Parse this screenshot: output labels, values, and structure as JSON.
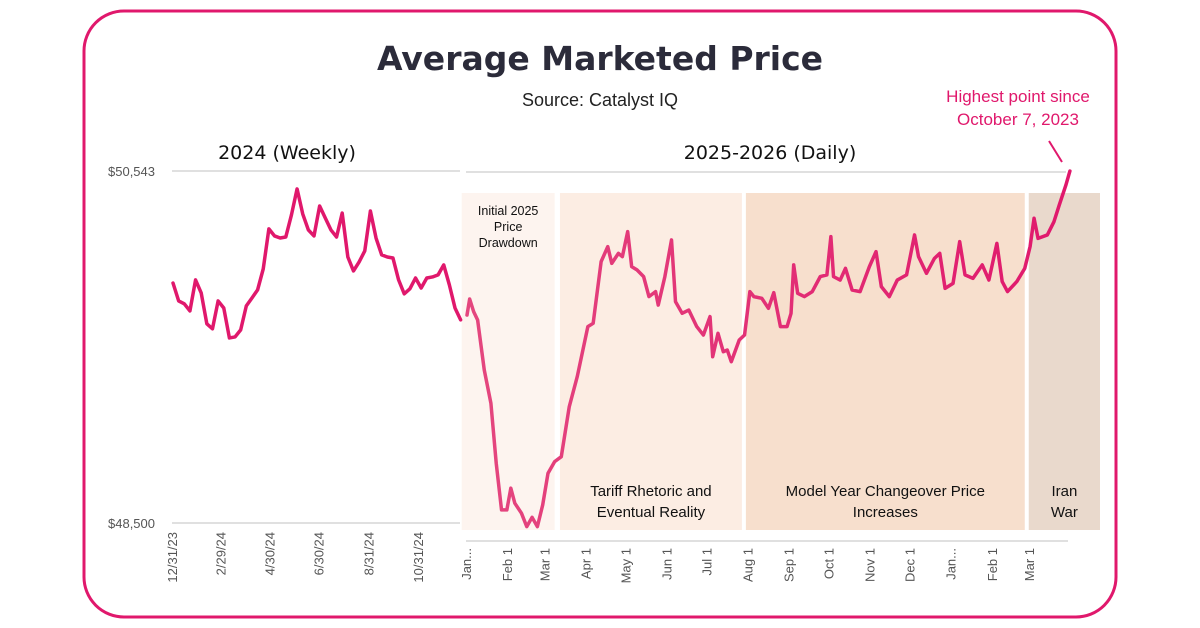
{
  "chart_data": {
    "type": "line",
    "title": "Average Marketed Price",
    "subtitle": "Source:  Catalyst IQ",
    "accent_color": "#e0186c",
    "yaxis": {
      "tick_labels": [
        "$50,543",
        "$48,500"
      ],
      "ylim": [
        48500,
        50543
      ],
      "grid": true
    },
    "panels": [
      {
        "heading": "2024 (Weekly)",
        "frequency": "weekly",
        "start_date": "2023-12-31",
        "x_tick_labels": [
          {
            "label": "12/31/23",
            "date": "2023-12-31"
          },
          {
            "label": "2/29/24",
            "date": "2024-02-29"
          },
          {
            "label": "4/30/24",
            "date": "2024-04-30"
          },
          {
            "label": "6/30/24",
            "date": "2024-06-30"
          },
          {
            "label": "8/31/24",
            "date": "2024-08-31"
          },
          {
            "label": "10/31/24",
            "date": "2024-10-31"
          }
        ],
        "values": [
          49893,
          49789,
          49772,
          49731,
          49911,
          49835,
          49656,
          49627,
          49789,
          49748,
          49574,
          49580,
          49621,
          49760,
          49806,
          49853,
          49975,
          50207,
          50166,
          50154,
          50160,
          50288,
          50439,
          50294,
          50201,
          50166,
          50340,
          50270,
          50201,
          50160,
          50299,
          50044,
          49963,
          50015,
          50079,
          50311,
          50154,
          50056,
          50044,
          50038,
          49911,
          49830,
          49859,
          49922,
          49864,
          49922,
          49928,
          49940,
          49998,
          49882,
          49748,
          49679
        ]
      },
      {
        "heading": "2025-2026 (Daily)",
        "frequency": "daily",
        "x_tick_labels": [
          {
            "label": "Jan...",
            "date": "2025-01-01"
          },
          {
            "label": "Feb 1",
            "date": "2025-02-01"
          },
          {
            "label": "Mar 1",
            "date": "2025-03-01"
          },
          {
            "label": "Apr 1",
            "date": "2025-04-01"
          },
          {
            "label": "May 1",
            "date": "2025-05-01"
          },
          {
            "label": "Jun 1",
            "date": "2025-06-01"
          },
          {
            "label": "Jul 1",
            "date": "2025-07-01"
          },
          {
            "label": "Aug 1",
            "date": "2025-08-01"
          },
          {
            "label": "Sep 1",
            "date": "2025-09-01"
          },
          {
            "label": "Oct 1",
            "date": "2025-10-01"
          },
          {
            "label": "Nov 1",
            "date": "2025-11-01"
          },
          {
            "label": "Dec 1",
            "date": "2025-12-01"
          },
          {
            "label": "Jan...",
            "date": "2026-01-01"
          },
          {
            "label": "Feb 1",
            "date": "2026-02-01"
          },
          {
            "label": "Mar 1",
            "date": "2026-03-01"
          }
        ],
        "points": [
          [
            "2025-01-01",
            49707
          ],
          [
            "2025-01-03",
            49800
          ],
          [
            "2025-01-06",
            49727
          ],
          [
            "2025-01-09",
            49678
          ],
          [
            "2025-01-14",
            49388
          ],
          [
            "2025-01-19",
            49195
          ],
          [
            "2025-01-23",
            48847
          ],
          [
            "2025-01-27",
            48576
          ],
          [
            "2025-01-31",
            48576
          ],
          [
            "2025-02-03",
            48702
          ],
          [
            "2025-02-06",
            48615
          ],
          [
            "2025-02-11",
            48557
          ],
          [
            "2025-02-15",
            48479
          ],
          [
            "2025-02-19",
            48533
          ],
          [
            "2025-02-23",
            48479
          ],
          [
            "2025-02-27",
            48605
          ],
          [
            "2025-03-03",
            48789
          ],
          [
            "2025-03-08",
            48856
          ],
          [
            "2025-03-13",
            48885
          ],
          [
            "2025-03-19",
            49175
          ],
          [
            "2025-03-25",
            49349
          ],
          [
            "2025-04-02",
            49640
          ],
          [
            "2025-04-06",
            49659
          ],
          [
            "2025-04-12",
            50017
          ],
          [
            "2025-04-17",
            50104
          ],
          [
            "2025-04-20",
            50007
          ],
          [
            "2025-04-25",
            50065
          ],
          [
            "2025-04-28",
            50046
          ],
          [
            "2025-05-02",
            50191
          ],
          [
            "2025-05-05",
            49988
          ],
          [
            "2025-05-09",
            49969
          ],
          [
            "2025-05-14",
            49930
          ],
          [
            "2025-05-18",
            49814
          ],
          [
            "2025-05-23",
            49843
          ],
          [
            "2025-05-25",
            49765
          ],
          [
            "2025-05-30",
            49930
          ],
          [
            "2025-06-04",
            50143
          ],
          [
            "2025-06-07",
            49785
          ],
          [
            "2025-06-12",
            49717
          ],
          [
            "2025-06-17",
            49736
          ],
          [
            "2025-06-23",
            49640
          ],
          [
            "2025-06-28",
            49591
          ],
          [
            "2025-07-03",
            49698
          ],
          [
            "2025-07-05",
            49465
          ],
          [
            "2025-07-09",
            49601
          ],
          [
            "2025-07-13",
            49494
          ],
          [
            "2025-07-16",
            49504
          ],
          [
            "2025-07-19",
            49436
          ],
          [
            "2025-07-25",
            49562
          ],
          [
            "2025-07-29",
            49591
          ],
          [
            "2025-08-02",
            49843
          ],
          [
            "2025-08-05",
            49814
          ],
          [
            "2025-08-11",
            49804
          ],
          [
            "2025-08-16",
            49746
          ],
          [
            "2025-08-20",
            49837
          ],
          [
            "2025-08-25",
            49640
          ],
          [
            "2025-08-30",
            49640
          ],
          [
            "2025-09-02",
            49717
          ],
          [
            "2025-09-04",
            49998
          ],
          [
            "2025-09-07",
            49833
          ],
          [
            "2025-09-12",
            49814
          ],
          [
            "2025-09-18",
            49843
          ],
          [
            "2025-09-24",
            49930
          ],
          [
            "2025-09-29",
            49940
          ],
          [
            "2025-10-02",
            50162
          ],
          [
            "2025-10-04",
            49930
          ],
          [
            "2025-10-09",
            49910
          ],
          [
            "2025-10-13",
            49978
          ],
          [
            "2025-10-18",
            49852
          ],
          [
            "2025-10-24",
            49843
          ],
          [
            "2025-10-31",
            49988
          ],
          [
            "2025-11-05",
            50075
          ],
          [
            "2025-11-09",
            49872
          ],
          [
            "2025-11-15",
            49814
          ],
          [
            "2025-11-21",
            49910
          ],
          [
            "2025-11-28",
            49940
          ],
          [
            "2025-12-04",
            50172
          ],
          [
            "2025-12-07",
            50046
          ],
          [
            "2025-12-13",
            49949
          ],
          [
            "2025-12-19",
            50036
          ],
          [
            "2025-12-23",
            50065
          ],
          [
            "2025-12-27",
            49862
          ],
          [
            "2026-01-02",
            49891
          ],
          [
            "2026-01-07",
            50133
          ],
          [
            "2026-01-11",
            49940
          ],
          [
            "2026-01-17",
            49920
          ],
          [
            "2026-01-24",
            49998
          ],
          [
            "2026-01-29",
            49910
          ],
          [
            "2026-02-04",
            50123
          ],
          [
            "2026-02-08",
            49901
          ],
          [
            "2026-02-12",
            49843
          ],
          [
            "2026-02-19",
            49901
          ],
          [
            "2026-02-25",
            49978
          ],
          [
            "2026-03-01",
            50104
          ],
          [
            "2026-03-04",
            50269
          ],
          [
            "2026-03-07",
            50152
          ],
          [
            "2026-03-14",
            50172
          ],
          [
            "2026-03-19",
            50249
          ],
          [
            "2026-03-23",
            50346
          ],
          [
            "2026-03-28",
            50462
          ],
          [
            "2026-03-31",
            50543
          ]
        ],
        "regions": [
          {
            "label": [
              "Initial 2025",
              "Price",
              "Drawdown"
            ],
            "start": "2024-12-28",
            "end": "2025-03-08",
            "color": "#fdf4ef"
          },
          {
            "label": [
              "Tariff Rhetoric and",
              "Eventual Reality"
            ],
            "start": "2025-03-12",
            "end": "2025-07-27",
            "color": "#fcede3"
          },
          {
            "label": [
              "Model Year Changeover Price",
              "Increases"
            ],
            "start": "2025-07-30",
            "end": "2026-02-25",
            "color": "#f7dfcd"
          },
          {
            "label": [
              "Iran",
              "War"
            ],
            "start": "2026-02-28",
            "end": "2026-04-24",
            "color": "#e9d9cc"
          }
        ]
      }
    ],
    "annotation": {
      "lines": [
        "Highest point since",
        "October 7, 2023"
      ]
    }
  }
}
